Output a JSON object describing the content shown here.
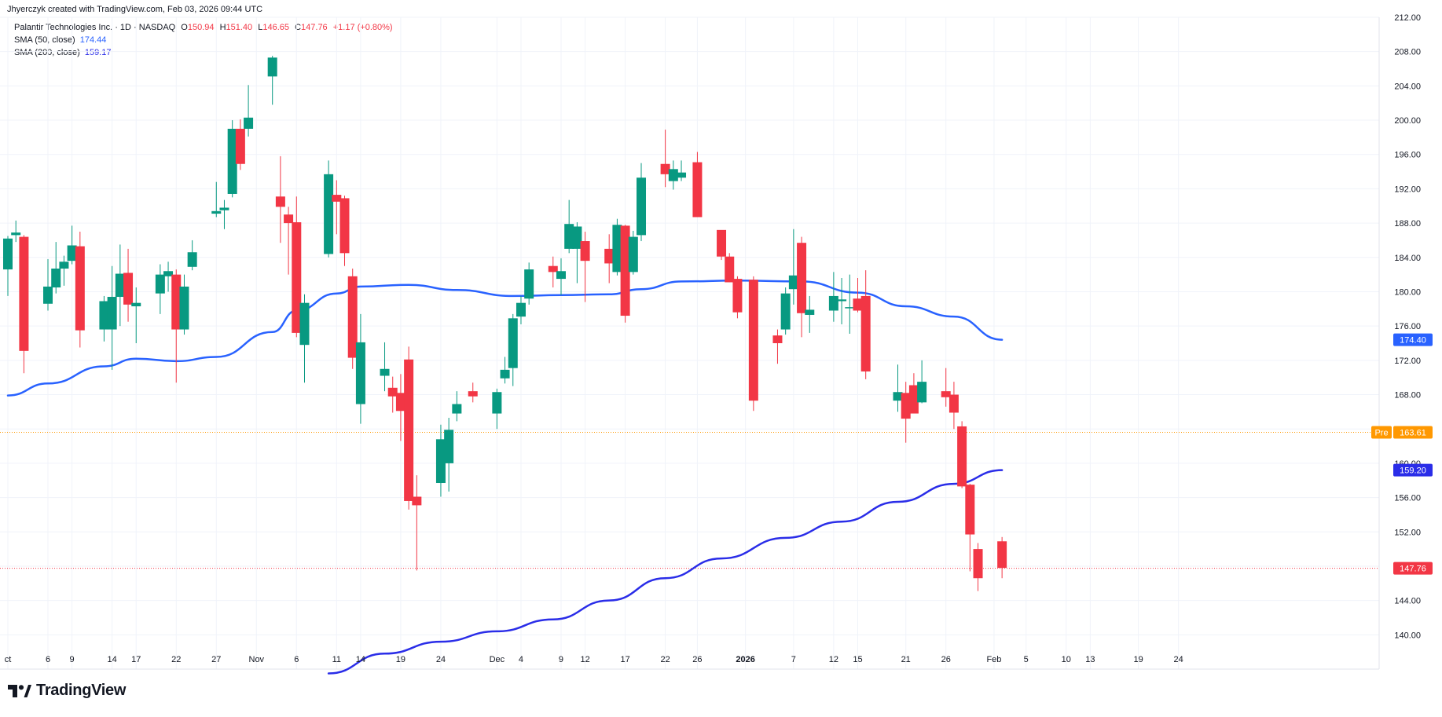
{
  "header": {
    "credit": "Jhyerczyk created with TradingView.com, Feb 03, 2026 09:44 UTC"
  },
  "legend": {
    "symbol": "Palantir Technologies Inc. · 1D · NASDAQ",
    "ohlc": [
      {
        "label": "O",
        "value": "150.94"
      },
      {
        "label": "H",
        "value": "151.40"
      },
      {
        "label": "L",
        "value": "146.65"
      },
      {
        "label": "C",
        "value": "147.76"
      }
    ],
    "change": "+1.17 (+0.80%)",
    "sma50": {
      "label": "SMA (50, close)",
      "value": "174.44"
    },
    "sma200": {
      "label": "SMA (200, close)",
      "value": "159.17"
    }
  },
  "brand": {
    "name": "TradingView"
  },
  "colors": {
    "up": "#089981",
    "down": "#f23645",
    "sma50": "#2962ff",
    "sma200": "#2a2de8",
    "pre": "#ff9800"
  },
  "chart_data": {
    "type": "candlestick",
    "ylim": [
      136,
      212
    ],
    "y_ticks": [
      140,
      144,
      148,
      152,
      156,
      160,
      164,
      168,
      172,
      176,
      180,
      184,
      188,
      192,
      196,
      200,
      204,
      208,
      212
    ],
    "y_tick_labels": [
      "140.00",
      "144.00",
      "148.00",
      "152.00",
      "156.00",
      "160.00",
      "164.00",
      "168.00",
      "172.00",
      "176.00",
      "180.00",
      "184.00",
      "188.00",
      "192.00",
      "196.00",
      "200.00",
      "204.00",
      "208.00",
      "212.00"
    ],
    "x_ticks": [
      {
        "label": "ct",
        "date": "2025-10-01"
      },
      {
        "label": "6",
        "date": "2025-10-06"
      },
      {
        "label": "9",
        "date": "2025-10-09"
      },
      {
        "label": "14",
        "date": "2025-10-14"
      },
      {
        "label": "17",
        "date": "2025-10-17"
      },
      {
        "label": "22",
        "date": "2025-10-22"
      },
      {
        "label": "27",
        "date": "2025-10-27"
      },
      {
        "label": "Nov",
        "date": "2025-11-01"
      },
      {
        "label": "6",
        "date": "2025-11-06"
      },
      {
        "label": "11",
        "date": "2025-11-11"
      },
      {
        "label": "14",
        "date": "2025-11-14"
      },
      {
        "label": "19",
        "date": "2025-11-19"
      },
      {
        "label": "24",
        "date": "2025-11-24"
      },
      {
        "label": "Dec",
        "date": "2025-12-01"
      },
      {
        "label": "4",
        "date": "2025-12-04"
      },
      {
        "label": "9",
        "date": "2025-12-09"
      },
      {
        "label": "12",
        "date": "2025-12-12"
      },
      {
        "label": "17",
        "date": "2025-12-17"
      },
      {
        "label": "22",
        "date": "2025-12-22"
      },
      {
        "label": "26",
        "date": "2025-12-26"
      },
      {
        "label": "2026",
        "date": "2026-01-01"
      },
      {
        "label": "7",
        "date": "2026-01-07"
      },
      {
        "label": "12",
        "date": "2026-01-12"
      },
      {
        "label": "15",
        "date": "2026-01-15"
      },
      {
        "label": "21",
        "date": "2026-01-21"
      },
      {
        "label": "26",
        "date": "2026-01-26"
      },
      {
        "label": "Feb",
        "date": "2026-02-01"
      },
      {
        "label": "5",
        "date": "2026-02-05"
      },
      {
        "label": "10",
        "date": "2026-02-10"
      },
      {
        "label": "13",
        "date": "2026-02-13"
      },
      {
        "label": "19",
        "date": "2026-02-19"
      },
      {
        "label": "24",
        "date": "2026-02-24"
      }
    ],
    "candles": [
      {
        "d": "2025-10-01",
        "o": 182.6,
        "h": 186.5,
        "l": 179.5,
        "c": 186.2
      },
      {
        "d": "2025-10-02",
        "o": 186.6,
        "h": 188.3,
        "l": 185.8,
        "c": 186.9
      },
      {
        "d": "2025-10-03",
        "o": 186.4,
        "h": 186.6,
        "l": 170.5,
        "c": 173.1
      },
      {
        "d": "2025-10-06",
        "o": 178.6,
        "h": 183.8,
        "l": 177.8,
        "c": 180.6
      },
      {
        "d": "2025-10-07",
        "o": 180.5,
        "h": 185.8,
        "l": 179.8,
        "c": 182.7
      },
      {
        "d": "2025-10-08",
        "o": 182.7,
        "h": 184.2,
        "l": 180.7,
        "c": 183.5
      },
      {
        "d": "2025-10-09",
        "o": 183.6,
        "h": 187.7,
        "l": 183.2,
        "c": 185.4
      },
      {
        "d": "2025-10-10",
        "o": 185.3,
        "h": 187.0,
        "l": 173.5,
        "c": 175.5
      },
      {
        "d": "2025-10-13",
        "o": 175.6,
        "h": 179.5,
        "l": 174.2,
        "c": 178.9
      },
      {
        "d": "2025-10-14",
        "o": 175.6,
        "h": 183.0,
        "l": 170.9,
        "c": 179.4
      },
      {
        "d": "2025-10-15",
        "o": 179.4,
        "h": 185.5,
        "l": 176.0,
        "c": 182.1
      },
      {
        "d": "2025-10-16",
        "o": 182.2,
        "h": 185.0,
        "l": 176.5,
        "c": 178.5
      },
      {
        "d": "2025-10-17",
        "o": 178.3,
        "h": 180.5,
        "l": 174.0,
        "c": 178.7
      },
      {
        "d": "2025-10-20",
        "o": 179.8,
        "h": 183.2,
        "l": 177.4,
        "c": 182.0
      },
      {
        "d": "2025-10-21",
        "o": 181.8,
        "h": 183.5,
        "l": 180.0,
        "c": 182.4
      },
      {
        "d": "2025-10-22",
        "o": 182.0,
        "h": 182.6,
        "l": 169.4,
        "c": 175.6
      },
      {
        "d": "2025-10-23",
        "o": 175.6,
        "h": 182.0,
        "l": 175.0,
        "c": 180.6
      },
      {
        "d": "2025-10-24",
        "o": 182.9,
        "h": 186.0,
        "l": 182.5,
        "c": 184.6
      },
      {
        "d": "2025-10-27",
        "o": 189.1,
        "h": 192.8,
        "l": 188.7,
        "c": 189.4
      },
      {
        "d": "2025-10-28",
        "o": 189.5,
        "h": 190.7,
        "l": 187.3,
        "c": 189.8
      },
      {
        "d": "2025-10-29",
        "o": 191.4,
        "h": 200.0,
        "l": 191.0,
        "c": 199.0
      },
      {
        "d": "2025-10-30",
        "o": 199.0,
        "h": 200.1,
        "l": 194.2,
        "c": 194.9
      },
      {
        "d": "2025-10-31",
        "o": 199.0,
        "h": 204.1,
        "l": 198.1,
        "c": 200.3
      },
      {
        "d": "2025-11-03",
        "o": 205.1,
        "h": 207.5,
        "l": 201.8,
        "c": 207.3
      },
      {
        "d": "2025-11-04",
        "o": 191.1,
        "h": 195.8,
        "l": 185.7,
        "c": 189.9
      },
      {
        "d": "2025-11-05",
        "o": 189.0,
        "h": 189.9,
        "l": 182.0,
        "c": 188.0
      },
      {
        "d": "2025-11-06",
        "o": 188.1,
        "h": 191.1,
        "l": 174.7,
        "c": 175.2
      },
      {
        "d": "2025-11-07",
        "o": 173.8,
        "h": 179.7,
        "l": 169.4,
        "c": 178.7
      },
      {
        "d": "2025-11-10",
        "o": 184.4,
        "h": 195.3,
        "l": 184.0,
        "c": 193.7
      },
      {
        "d": "2025-11-11",
        "o": 191.3,
        "h": 193.0,
        "l": 186.7,
        "c": 190.5
      },
      {
        "d": "2025-11-12",
        "o": 190.9,
        "h": 191.2,
        "l": 183.0,
        "c": 184.5
      },
      {
        "d": "2025-11-13",
        "o": 181.8,
        "h": 182.7,
        "l": 171.0,
        "c": 172.3
      },
      {
        "d": "2025-11-14",
        "o": 166.9,
        "h": 177.4,
        "l": 164.6,
        "c": 174.1
      },
      {
        "d": "2025-11-17",
        "o": 170.2,
        "h": 174.1,
        "l": 168.4,
        "c": 171.0
      },
      {
        "d": "2025-11-18",
        "o": 168.8,
        "h": 170.1,
        "l": 165.9,
        "c": 167.8
      },
      {
        "d": "2025-11-19",
        "o": 168.2,
        "h": 170.4,
        "l": 162.6,
        "c": 166.1
      },
      {
        "d": "2025-11-20",
        "o": 172.1,
        "h": 173.6,
        "l": 154.6,
        "c": 155.6
      },
      {
        "d": "2025-11-21",
        "o": 156.1,
        "h": 158.6,
        "l": 147.5,
        "c": 155.1
      },
      {
        "d": "2025-11-24",
        "o": 157.7,
        "h": 164.5,
        "l": 156.1,
        "c": 162.8
      },
      {
        "d": "2025-11-25",
        "o": 160.0,
        "h": 165.3,
        "l": 156.7,
        "c": 163.9
      },
      {
        "d": "2025-11-26",
        "o": 165.8,
        "h": 168.4,
        "l": 164.9,
        "c": 166.9
      },
      {
        "d": "2025-11-28",
        "o": 168.4,
        "h": 169.4,
        "l": 167.1,
        "c": 167.8
      },
      {
        "d": "2025-12-01",
        "o": 165.8,
        "h": 168.7,
        "l": 164.0,
        "c": 168.3
      },
      {
        "d": "2025-12-02",
        "o": 169.9,
        "h": 172.4,
        "l": 169.3,
        "c": 170.9
      },
      {
        "d": "2025-12-03",
        "o": 171.1,
        "h": 177.4,
        "l": 169.0,
        "c": 176.9
      },
      {
        "d": "2025-12-04",
        "o": 177.1,
        "h": 179.5,
        "l": 176.2,
        "c": 178.7
      },
      {
        "d": "2025-12-05",
        "o": 179.2,
        "h": 183.4,
        "l": 178.5,
        "c": 182.6
      },
      {
        "d": "2025-12-08",
        "o": 183.0,
        "h": 184.1,
        "l": 180.5,
        "c": 182.3
      },
      {
        "d": "2025-12-09",
        "o": 181.5,
        "h": 183.9,
        "l": 179.6,
        "c": 182.4
      },
      {
        "d": "2025-12-10",
        "o": 185.0,
        "h": 190.7,
        "l": 184.5,
        "c": 187.9
      },
      {
        "d": "2025-12-11",
        "o": 185.0,
        "h": 188.1,
        "l": 181.0,
        "c": 187.6
      },
      {
        "d": "2025-12-12",
        "o": 185.9,
        "h": 187.0,
        "l": 178.8,
        "c": 183.6
      },
      {
        "d": "2025-12-15",
        "o": 185.0,
        "h": 186.7,
        "l": 181.0,
        "c": 183.3
      },
      {
        "d": "2025-12-16",
        "o": 182.3,
        "h": 188.5,
        "l": 181.9,
        "c": 187.8
      },
      {
        "d": "2025-12-17",
        "o": 187.7,
        "h": 187.8,
        "l": 176.4,
        "c": 177.2
      },
      {
        "d": "2025-12-18",
        "o": 182.3,
        "h": 187.1,
        "l": 182.0,
        "c": 186.4
      },
      {
        "d": "2025-12-19",
        "o": 186.6,
        "h": 195.0,
        "l": 185.9,
        "c": 193.3
      },
      {
        "d": "2025-12-22",
        "o": 194.9,
        "h": 198.9,
        "l": 192.2,
        "c": 193.7
      },
      {
        "d": "2025-12-23",
        "o": 192.9,
        "h": 195.3,
        "l": 191.9,
        "c": 194.3
      },
      {
        "d": "2025-12-24",
        "o": 193.3,
        "h": 195.3,
        "l": 192.9,
        "c": 193.9
      },
      {
        "d": "2025-12-26",
        "o": 195.1,
        "h": 196.3,
        "l": 188.7,
        "c": 188.7
      },
      {
        "d": "2025-12-29",
        "o": 187.2,
        "h": 186.7,
        "l": 183.7,
        "c": 184.1
      },
      {
        "d": "2025-12-30",
        "o": 184.1,
        "h": 184.5,
        "l": 181.1,
        "c": 181.1
      },
      {
        "d": "2025-12-31",
        "o": 181.5,
        "h": 181.8,
        "l": 176.9,
        "c": 177.6
      },
      {
        "d": "2026-01-02",
        "o": 181.4,
        "h": 181.8,
        "l": 166.1,
        "c": 167.3
      },
      {
        "d": "2026-01-05",
        "o": 174.9,
        "h": 175.6,
        "l": 171.6,
        "c": 174.0
      },
      {
        "d": "2026-01-06",
        "o": 175.6,
        "h": 180.5,
        "l": 175.0,
        "c": 179.8
      },
      {
        "d": "2026-01-07",
        "o": 180.3,
        "h": 187.3,
        "l": 178.5,
        "c": 181.9
      },
      {
        "d": "2026-01-08",
        "o": 185.7,
        "h": 186.4,
        "l": 174.7,
        "c": 177.5
      },
      {
        "d": "2026-01-09",
        "o": 177.3,
        "h": 179.5,
        "l": 175.2,
        "c": 177.9
      },
      {
        "d": "2026-01-12",
        "o": 177.8,
        "h": 182.3,
        "l": 176.5,
        "c": 179.5
      },
      {
        "d": "2026-01-13",
        "o": 178.9,
        "h": 181.6,
        "l": 176.2,
        "c": 179.1
      },
      {
        "d": "2026-01-14",
        "o": 178.1,
        "h": 182.0,
        "l": 175.1,
        "c": 178.2
      },
      {
        "d": "2026-01-15",
        "o": 179.2,
        "h": 181.6,
        "l": 177.6,
        "c": 177.8
      },
      {
        "d": "2026-01-16",
        "o": 179.5,
        "h": 182.5,
        "l": 169.8,
        "c": 170.7
      },
      {
        "d": "2026-01-20",
        "o": 167.3,
        "h": 171.5,
        "l": 166.0,
        "c": 168.3
      },
      {
        "d": "2026-01-21",
        "o": 168.2,
        "h": 169.5,
        "l": 162.4,
        "c": 165.2
      },
      {
        "d": "2026-01-22",
        "o": 169.1,
        "h": 170.5,
        "l": 166.2,
        "c": 165.8
      },
      {
        "d": "2026-01-23",
        "o": 167.1,
        "h": 172.0,
        "l": 167.0,
        "c": 169.5
      },
      {
        "d": "2026-01-26",
        "o": 168.4,
        "h": 171.1,
        "l": 166.6,
        "c": 167.7
      },
      {
        "d": "2026-01-27",
        "o": 168.0,
        "h": 169.5,
        "l": 164.0,
        "c": 165.9
      },
      {
        "d": "2026-01-28",
        "o": 164.3,
        "h": 164.9,
        "l": 157.1,
        "c": 157.3
      },
      {
        "d": "2026-01-29",
        "o": 157.5,
        "h": 157.6,
        "l": 147.4,
        "c": 151.7
      },
      {
        "d": "2026-01-30",
        "o": 150.0,
        "h": 150.7,
        "l": 145.1,
        "c": 146.6
      },
      {
        "d": "2026-02-02",
        "o": 150.9,
        "h": 151.4,
        "l": 146.6,
        "c": 147.8
      }
    ],
    "series": [
      {
        "name": "SMA (50, close)",
        "color": "#2962ff",
        "points": [
          [
            "2025-10-01",
            167.9
          ],
          [
            "2025-10-06",
            169.3
          ],
          [
            "2025-10-13",
            171.3
          ],
          [
            "2025-10-17",
            172.2
          ],
          [
            "2025-10-22",
            171.9
          ],
          [
            "2025-10-27",
            172.4
          ],
          [
            "2025-11-03",
            175.3
          ],
          [
            "2025-11-06",
            177.8
          ],
          [
            "2025-11-11",
            179.8
          ],
          [
            "2025-11-14",
            180.6
          ],
          [
            "2025-11-20",
            180.8
          ],
          [
            "2025-11-26",
            180.2
          ],
          [
            "2025-12-03",
            179.5
          ],
          [
            "2025-12-09",
            179.6
          ],
          [
            "2025-12-15",
            179.7
          ],
          [
            "2025-12-19",
            180.3
          ],
          [
            "2025-12-24",
            181.2
          ],
          [
            "2025-12-31",
            181.3
          ],
          [
            "2026-01-08",
            181.2
          ],
          [
            "2026-01-15",
            179.9
          ],
          [
            "2026-01-21",
            178.3
          ],
          [
            "2026-01-27",
            177.1
          ],
          [
            "2026-02-02",
            174.4
          ]
        ]
      },
      {
        "name": "SMA (200, close)",
        "color": "#2a2de8",
        "points": [
          [
            "2025-11-10",
            135.5
          ],
          [
            "2025-11-17",
            137.8
          ],
          [
            "2025-11-24",
            139.2
          ],
          [
            "2025-12-01",
            140.4
          ],
          [
            "2025-12-08",
            141.8
          ],
          [
            "2025-12-15",
            144.0
          ],
          [
            "2025-12-22",
            146.6
          ],
          [
            "2025-12-29",
            148.9
          ],
          [
            "2026-01-06",
            151.3
          ],
          [
            "2026-01-13",
            153.2
          ],
          [
            "2026-01-20",
            155.5
          ],
          [
            "2026-01-27",
            157.6
          ],
          [
            "2026-02-02",
            159.2
          ]
        ]
      }
    ],
    "price_lines": [
      {
        "name": "pre-market",
        "label": "Pre",
        "value": "163.61",
        "color": "#ff9800"
      },
      {
        "name": "last",
        "label": "",
        "value": "147.76",
        "color": "#f23645"
      }
    ]
  }
}
